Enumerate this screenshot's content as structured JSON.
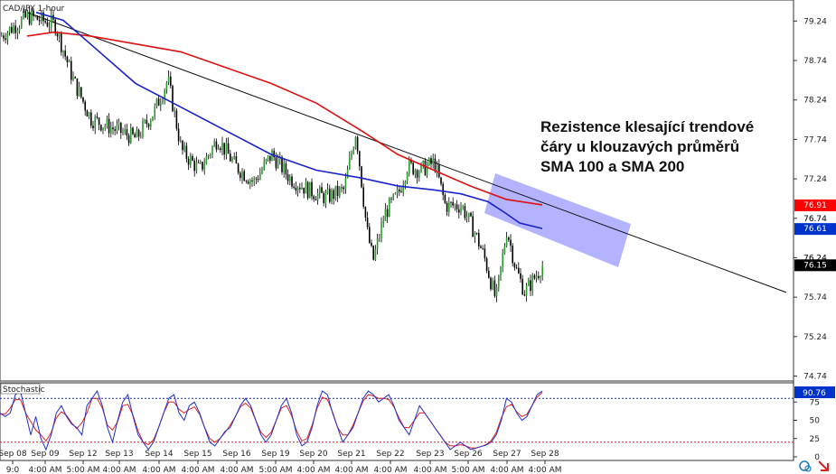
{
  "chart_data": {
    "type": "candlestick",
    "title": "CAD/JPY 1-hour",
    "annotation": [
      "Rezistence klesající trendové",
      "čáry u klouzavých průměrů",
      "SMA 100 a SMA 200"
    ],
    "y_ticks": [
      "79.24",
      "78.74",
      "78.24",
      "77.74",
      "77.24",
      "76.74",
      "76.24",
      "75.74",
      "75.24",
      "74.74"
    ],
    "y_tick_values": [
      79.24,
      78.74,
      78.24,
      77.74,
      77.24,
      76.74,
      76.24,
      75.74,
      75.24,
      74.74
    ],
    "ylim": [
      74.7,
      79.45
    ],
    "x_date_labels": [
      "Sep 08",
      "Sep 09",
      "Sep 12",
      "Sep 13",
      "Sep 14",
      "Sep 15",
      "Sep 16",
      "Sep 19",
      "Sep 20",
      "Sep 21",
      "Sep 22",
      "Sep 23",
      "Sep 26",
      "Sep 27",
      "Sep 28"
    ],
    "x_time_labels": [
      "9:0",
      "4:00 AM",
      "5:00 AM",
      "4:00 AM",
      "4:00 AM",
      "4:00 AM",
      "4:00 AM",
      "5:00 AM",
      "4:00 AM",
      "4:00 AM",
      "4:00 AM",
      "4:00 AM",
      "5:00 AM",
      "4:00 AM",
      "4:00 AM"
    ],
    "price_labels": [
      {
        "text": "76.91",
        "value": 76.91,
        "color": "#ff0000"
      },
      {
        "text": "76.74",
        "value": 76.74,
        "color": "none"
      },
      {
        "text": "76.61",
        "value": 76.61,
        "color": "#0033cc"
      },
      {
        "text": "76.24",
        "value": 76.24,
        "color": "none"
      },
      {
        "text": "76.15",
        "value": 76.15,
        "color": "#000000"
      }
    ],
    "close_path": [
      [
        0,
        79.05
      ],
      [
        30,
        79.3
      ],
      [
        60,
        79.2
      ],
      [
        80,
        78.5
      ],
      [
        100,
        78.0
      ],
      [
        120,
        77.9
      ],
      [
        150,
        77.75
      ],
      [
        170,
        78.1
      ],
      [
        185,
        78.5
      ],
      [
        200,
        77.6
      ],
      [
        220,
        77.35
      ],
      [
        240,
        77.75
      ],
      [
        260,
        77.4
      ],
      [
        280,
        77.2
      ],
      [
        300,
        77.55
      ],
      [
        320,
        77.25
      ],
      [
        340,
        77.1
      ],
      [
        360,
        77.0
      ],
      [
        380,
        77.1
      ],
      [
        393,
        77.85
      ],
      [
        405,
        76.6
      ],
      [
        412,
        76.2
      ],
      [
        425,
        76.8
      ],
      [
        440,
        77.05
      ],
      [
        450,
        77.4
      ],
      [
        465,
        77.35
      ],
      [
        480,
        77.45
      ],
      [
        492,
        76.9
      ],
      [
        510,
        76.9
      ],
      [
        525,
        76.55
      ],
      [
        535,
        76.25
      ],
      [
        548,
        75.7
      ],
      [
        560,
        76.6
      ],
      [
        570,
        76.1
      ],
      [
        580,
        75.8
      ],
      [
        600,
        76.15
      ]
    ],
    "sma100_path": [
      [
        40,
        79.35
      ],
      [
        70,
        79.25
      ],
      [
        100,
        78.95
      ],
      [
        150,
        78.45
      ],
      [
        200,
        78.15
      ],
      [
        250,
        77.85
      ],
      [
        300,
        77.55
      ],
      [
        350,
        77.35
      ],
      [
        400,
        77.25
      ],
      [
        440,
        77.15
      ],
      [
        480,
        77.1
      ],
      [
        510,
        77.05
      ],
      [
        540,
        76.95
      ],
      [
        560,
        76.8
      ],
      [
        575,
        76.68
      ],
      [
        600,
        76.61
      ]
    ],
    "sma200_path": [
      [
        30,
        79.05
      ],
      [
        60,
        79.1
      ],
      [
        100,
        79.05
      ],
      [
        150,
        78.95
      ],
      [
        200,
        78.85
      ],
      [
        250,
        78.65
      ],
      [
        300,
        78.45
      ],
      [
        350,
        78.2
      ],
      [
        400,
        77.85
      ],
      [
        440,
        77.55
      ],
      [
        480,
        77.35
      ],
      [
        520,
        77.15
      ],
      [
        560,
        76.98
      ],
      [
        600,
        76.91
      ]
    ],
    "trendline": [
      [
        30,
        79.35
      ],
      [
        870,
        75.8
      ]
    ],
    "stochastic": {
      "label": "Stochastic",
      "value_label": "90.76",
      "y_ticks": [
        "75",
        "50",
        "25",
        "0"
      ],
      "levels": [
        80,
        20
      ],
      "k": [
        60,
        55,
        60,
        85,
        90,
        60,
        30,
        55,
        25,
        10,
        30,
        60,
        70,
        55,
        45,
        40,
        30,
        70,
        80,
        90,
        70,
        40,
        20,
        50,
        75,
        85,
        55,
        30,
        20,
        10,
        20,
        40,
        60,
        80,
        85,
        60,
        50,
        70,
        75,
        60,
        40,
        20,
        15,
        25,
        35,
        40,
        55,
        70,
        80,
        70,
        50,
        30,
        20,
        30,
        50,
        70,
        80,
        60,
        30,
        15,
        20,
        40,
        70,
        90,
        85,
        60,
        40,
        20,
        30,
        40,
        60,
        80,
        90,
        85,
        75,
        80,
        85,
        70,
        50,
        40,
        30,
        50,
        70,
        60,
        50,
        40,
        30,
        20,
        10,
        15,
        20,
        15,
        10,
        12,
        14,
        16,
        20,
        30,
        50,
        80,
        75,
        60,
        50,
        55,
        70,
        85,
        90
      ]
    }
  }
}
